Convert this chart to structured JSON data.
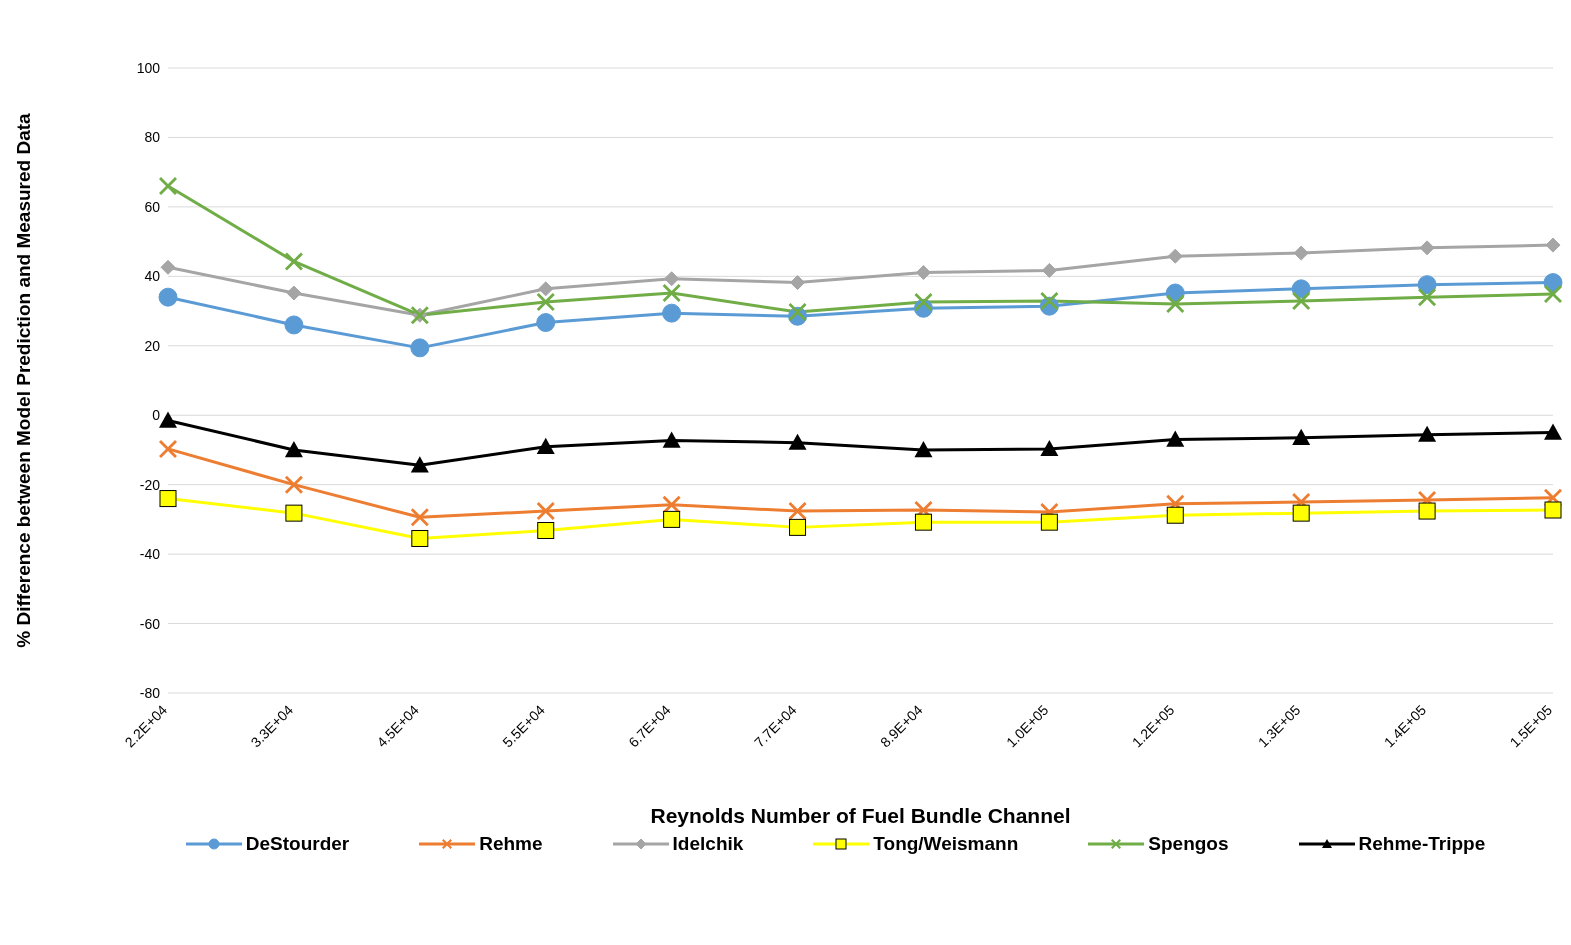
{
  "chart_data": {
    "type": "line",
    "xlabel": "Reynolds Number of Fuel Bundle Channel",
    "ylabel": "% Difference between Model Prediction and Measured Data",
    "categories": [
      "2.2E+04",
      "3.3E+04",
      "4.5E+04",
      "5.5E+04",
      "6.7E+04",
      "7.7E+04",
      "8.9E+04",
      "1.0E+05",
      "1.2E+05",
      "1.3E+05",
      "1.4E+05",
      "1.5E+05"
    ],
    "ylim": [
      -80,
      100
    ],
    "yticks": [
      -80,
      -60,
      -40,
      -20,
      0,
      20,
      40,
      60,
      80,
      100
    ],
    "grid": "y",
    "legend": "bottom",
    "series": [
      {
        "name": "DeStourder",
        "color": "#5b9bd5",
        "marker": "circle",
        "values": [
          34,
          26,
          19.4,
          26.7,
          29.4,
          28.5,
          30.8,
          31.4,
          35.2,
          36.4,
          37.6,
          38.2
        ]
      },
      {
        "name": "Rehme",
        "color": "#ed7d31",
        "marker": "cross",
        "values": [
          -9.7,
          -20,
          -29.4,
          -27.6,
          -25.8,
          -27.6,
          -27.3,
          -27.9,
          -25.5,
          -25,
          -24.4,
          -23.8
        ]
      },
      {
        "name": "Idelchik",
        "color": "#a5a5a5",
        "marker": "diamond",
        "values": [
          42.6,
          35.2,
          28.8,
          36.4,
          39.3,
          38.2,
          41.1,
          41.7,
          45.8,
          46.7,
          48.2,
          49
        ]
      },
      {
        "name": "Tong/Weismann",
        "color": "#ffff00",
        "marker": "square",
        "values": [
          -24,
          -28.2,
          -35.5,
          -33.2,
          -30,
          -32.3,
          -30.8,
          -30.8,
          -28.8,
          -28.2,
          -27.6,
          -27.3
        ]
      },
      {
        "name": "Spengos",
        "color": "#70ad47",
        "marker": "cross",
        "values": [
          66,
          44.3,
          28.8,
          32.6,
          35.2,
          29.7,
          32.6,
          32.9,
          32,
          32.9,
          34,
          34.9
        ]
      },
      {
        "name": "Rehme-Trippe",
        "color": "#000000",
        "marker": "triangle",
        "values": [
          -1.5,
          -10,
          -14.4,
          -9.1,
          -7.3,
          -7.9,
          -10,
          -9.7,
          -7,
          -6.5,
          -5.6,
          -5
        ]
      }
    ]
  }
}
